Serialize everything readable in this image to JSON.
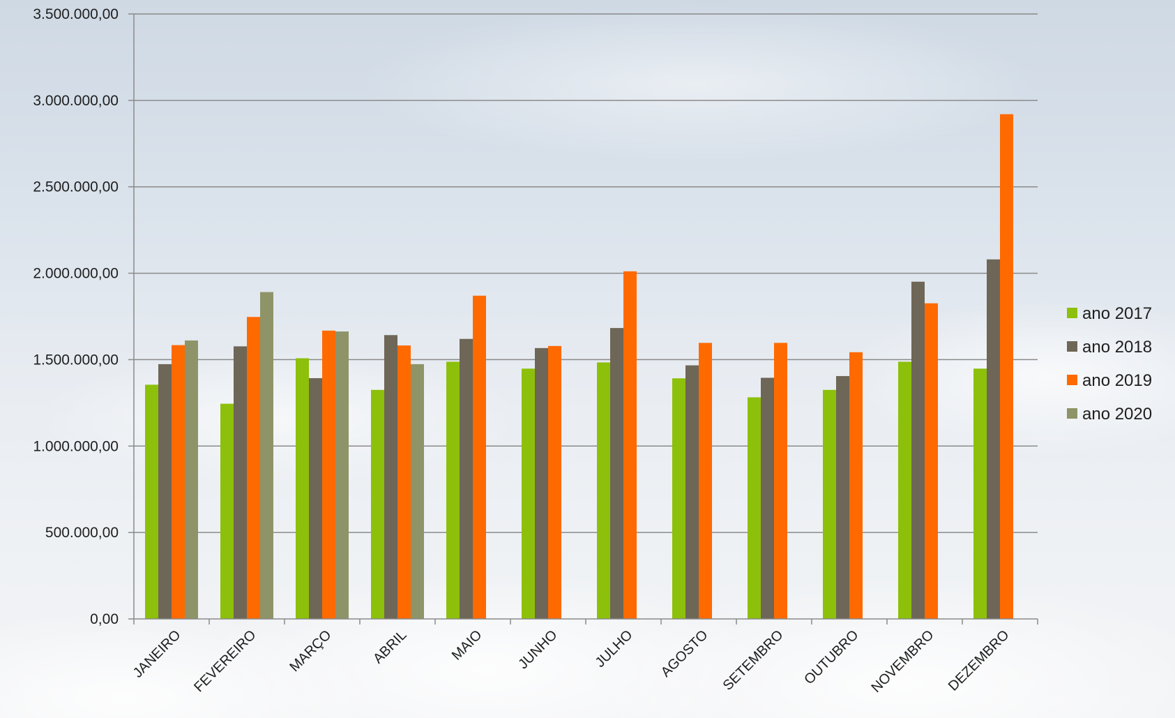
{
  "chart_data": {
    "type": "bar",
    "title": "",
    "xlabel": "",
    "ylabel": "",
    "ylim": [
      0,
      3500000
    ],
    "y_ticks": [
      0,
      500000,
      1000000,
      1500000,
      2000000,
      2500000,
      3000000,
      3500000
    ],
    "y_tick_labels": [
      "0,00",
      "500.000,00",
      "1.000.000,00",
      "1.500.000,00",
      "2.000.000,00",
      "2.500.000,00",
      "3.000.000,00",
      "3.500.000,00"
    ],
    "grid": true,
    "legend_position": "right",
    "categories": [
      "JANEIRO",
      "FEVEREIRO",
      "MARÇO",
      "ABRIL",
      "MAIO",
      "JUNHO",
      "JULHO",
      "AGOSTO",
      "SETEMBRO",
      "OUTUBRO",
      "NOVEMBRO",
      "DEZEMBRO"
    ],
    "series": [
      {
        "name": "ano 2017",
        "color": "#8dc00a",
        "values": [
          1355000,
          1245000,
          1508000,
          1325000,
          1488000,
          1448000,
          1484000,
          1392000,
          1282000,
          1325000,
          1488000,
          1448000
        ]
      },
      {
        "name": "ano 2018",
        "color": "#6e6657",
        "values": [
          1474000,
          1577000,
          1393000,
          1642000,
          1620000,
          1567000,
          1683000,
          1467000,
          1395000,
          1405000,
          1951000,
          2080000
        ]
      },
      {
        "name": "ano 2019",
        "color": "#ff6a00",
        "values": [
          1584000,
          1747000,
          1668000,
          1582000,
          1870000,
          1579000,
          2011000,
          1597000,
          1597000,
          1543000,
          1826000,
          2920000
        ]
      },
      {
        "name": "ano 2020",
        "color": "#8e9468",
        "values": [
          1611000,
          1891000,
          1663000,
          1474000,
          null,
          null,
          null,
          null,
          null,
          null,
          null,
          null
        ]
      }
    ]
  }
}
